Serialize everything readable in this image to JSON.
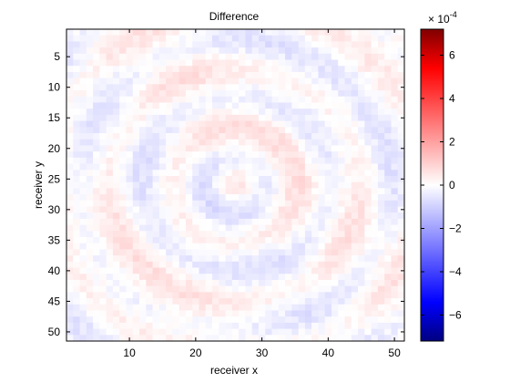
{
  "chart_data": {
    "type": "heatmap",
    "title": "Difference",
    "xlabel": "receiver x",
    "ylabel": "receiver y",
    "x_range": [
      1,
      51
    ],
    "y_range": [
      1,
      51
    ],
    "y_direction": "down",
    "x_ticks": [
      10,
      20,
      30,
      40,
      50
    ],
    "y_ticks": [
      5,
      10,
      15,
      20,
      25,
      30,
      35,
      40,
      45,
      50
    ],
    "grid": false,
    "colorbar": {
      "position": "right",
      "colormap": [
        "#000080",
        "#0000ff",
        "#ffffff",
        "#ff0000",
        "#800000"
      ],
      "range": [
        -7.2,
        7.2
      ],
      "ticks": [
        -6,
        -4,
        -2,
        0,
        2,
        4,
        6
      ],
      "exponent_label": "× 10",
      "exponent": "-4"
    },
    "pattern": {
      "description_values": "field of small differences in units of 1e-4, mostly within ±0.8",
      "center": [
        26,
        26
      ],
      "ring_wavelength": 9.5,
      "amplitude": 0.55,
      "noise": 0.25
    }
  }
}
